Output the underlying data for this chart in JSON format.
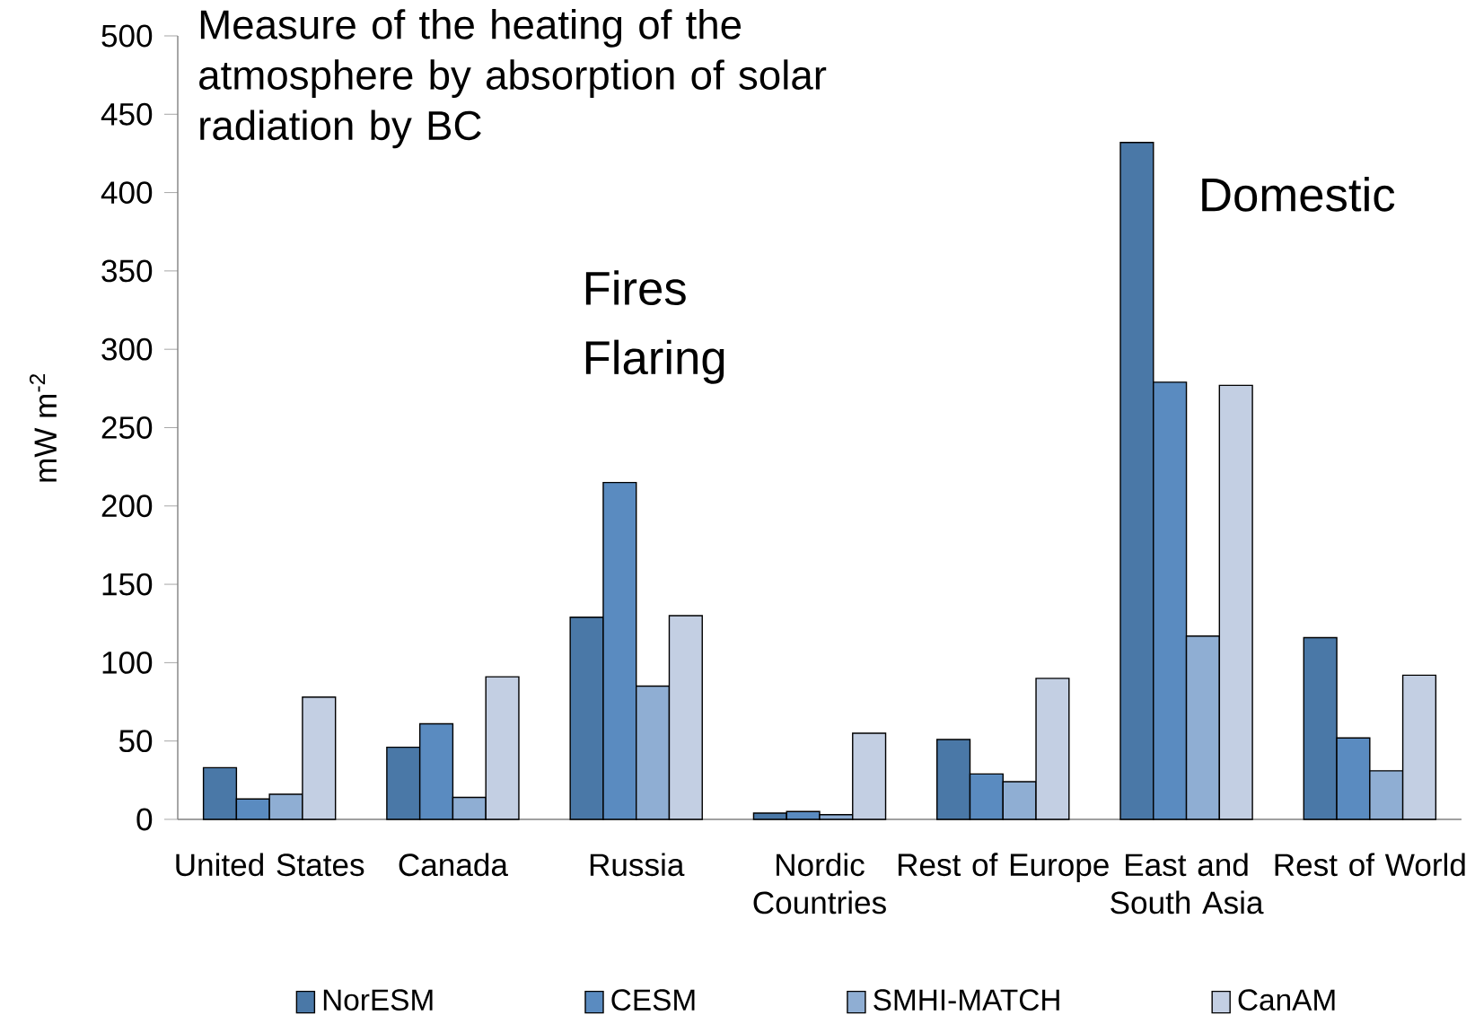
{
  "chart_data": {
    "type": "bar",
    "title": "Measure of the heating of the atmosphere by absorption of solar radiation by BC",
    "ylabel": "mW m$^{-2}$",
    "categories": [
      "United States",
      "Canada",
      "Russia",
      "Nordic Countries",
      "Rest of Europe",
      "East and South Asia",
      "Rest of World"
    ],
    "series": [
      {
        "name": "NorESM",
        "color": "#4a78a7",
        "values": [
          33,
          46,
          129,
          4,
          51,
          432,
          116
        ]
      },
      {
        "name": "CESM",
        "color": "#5a8bc0",
        "values": [
          13,
          61,
          215,
          5,
          29,
          279,
          52
        ]
      },
      {
        "name": "SMHI-MATCH",
        "color": "#8faed3",
        "values": [
          16,
          14,
          85,
          3,
          24,
          117,
          31
        ]
      },
      {
        "name": "CanAM",
        "color": "#c3cfe3",
        "values": [
          78,
          91,
          130,
          55,
          90,
          277,
          92
        ]
      }
    ],
    "ylim": [
      0,
      500
    ],
    "yticks": [
      0,
      50,
      100,
      150,
      200,
      250,
      300,
      350,
      400,
      450,
      500
    ],
    "annotations": [
      "Fires Flaring",
      "Domestic"
    ],
    "legend": "bottom"
  }
}
